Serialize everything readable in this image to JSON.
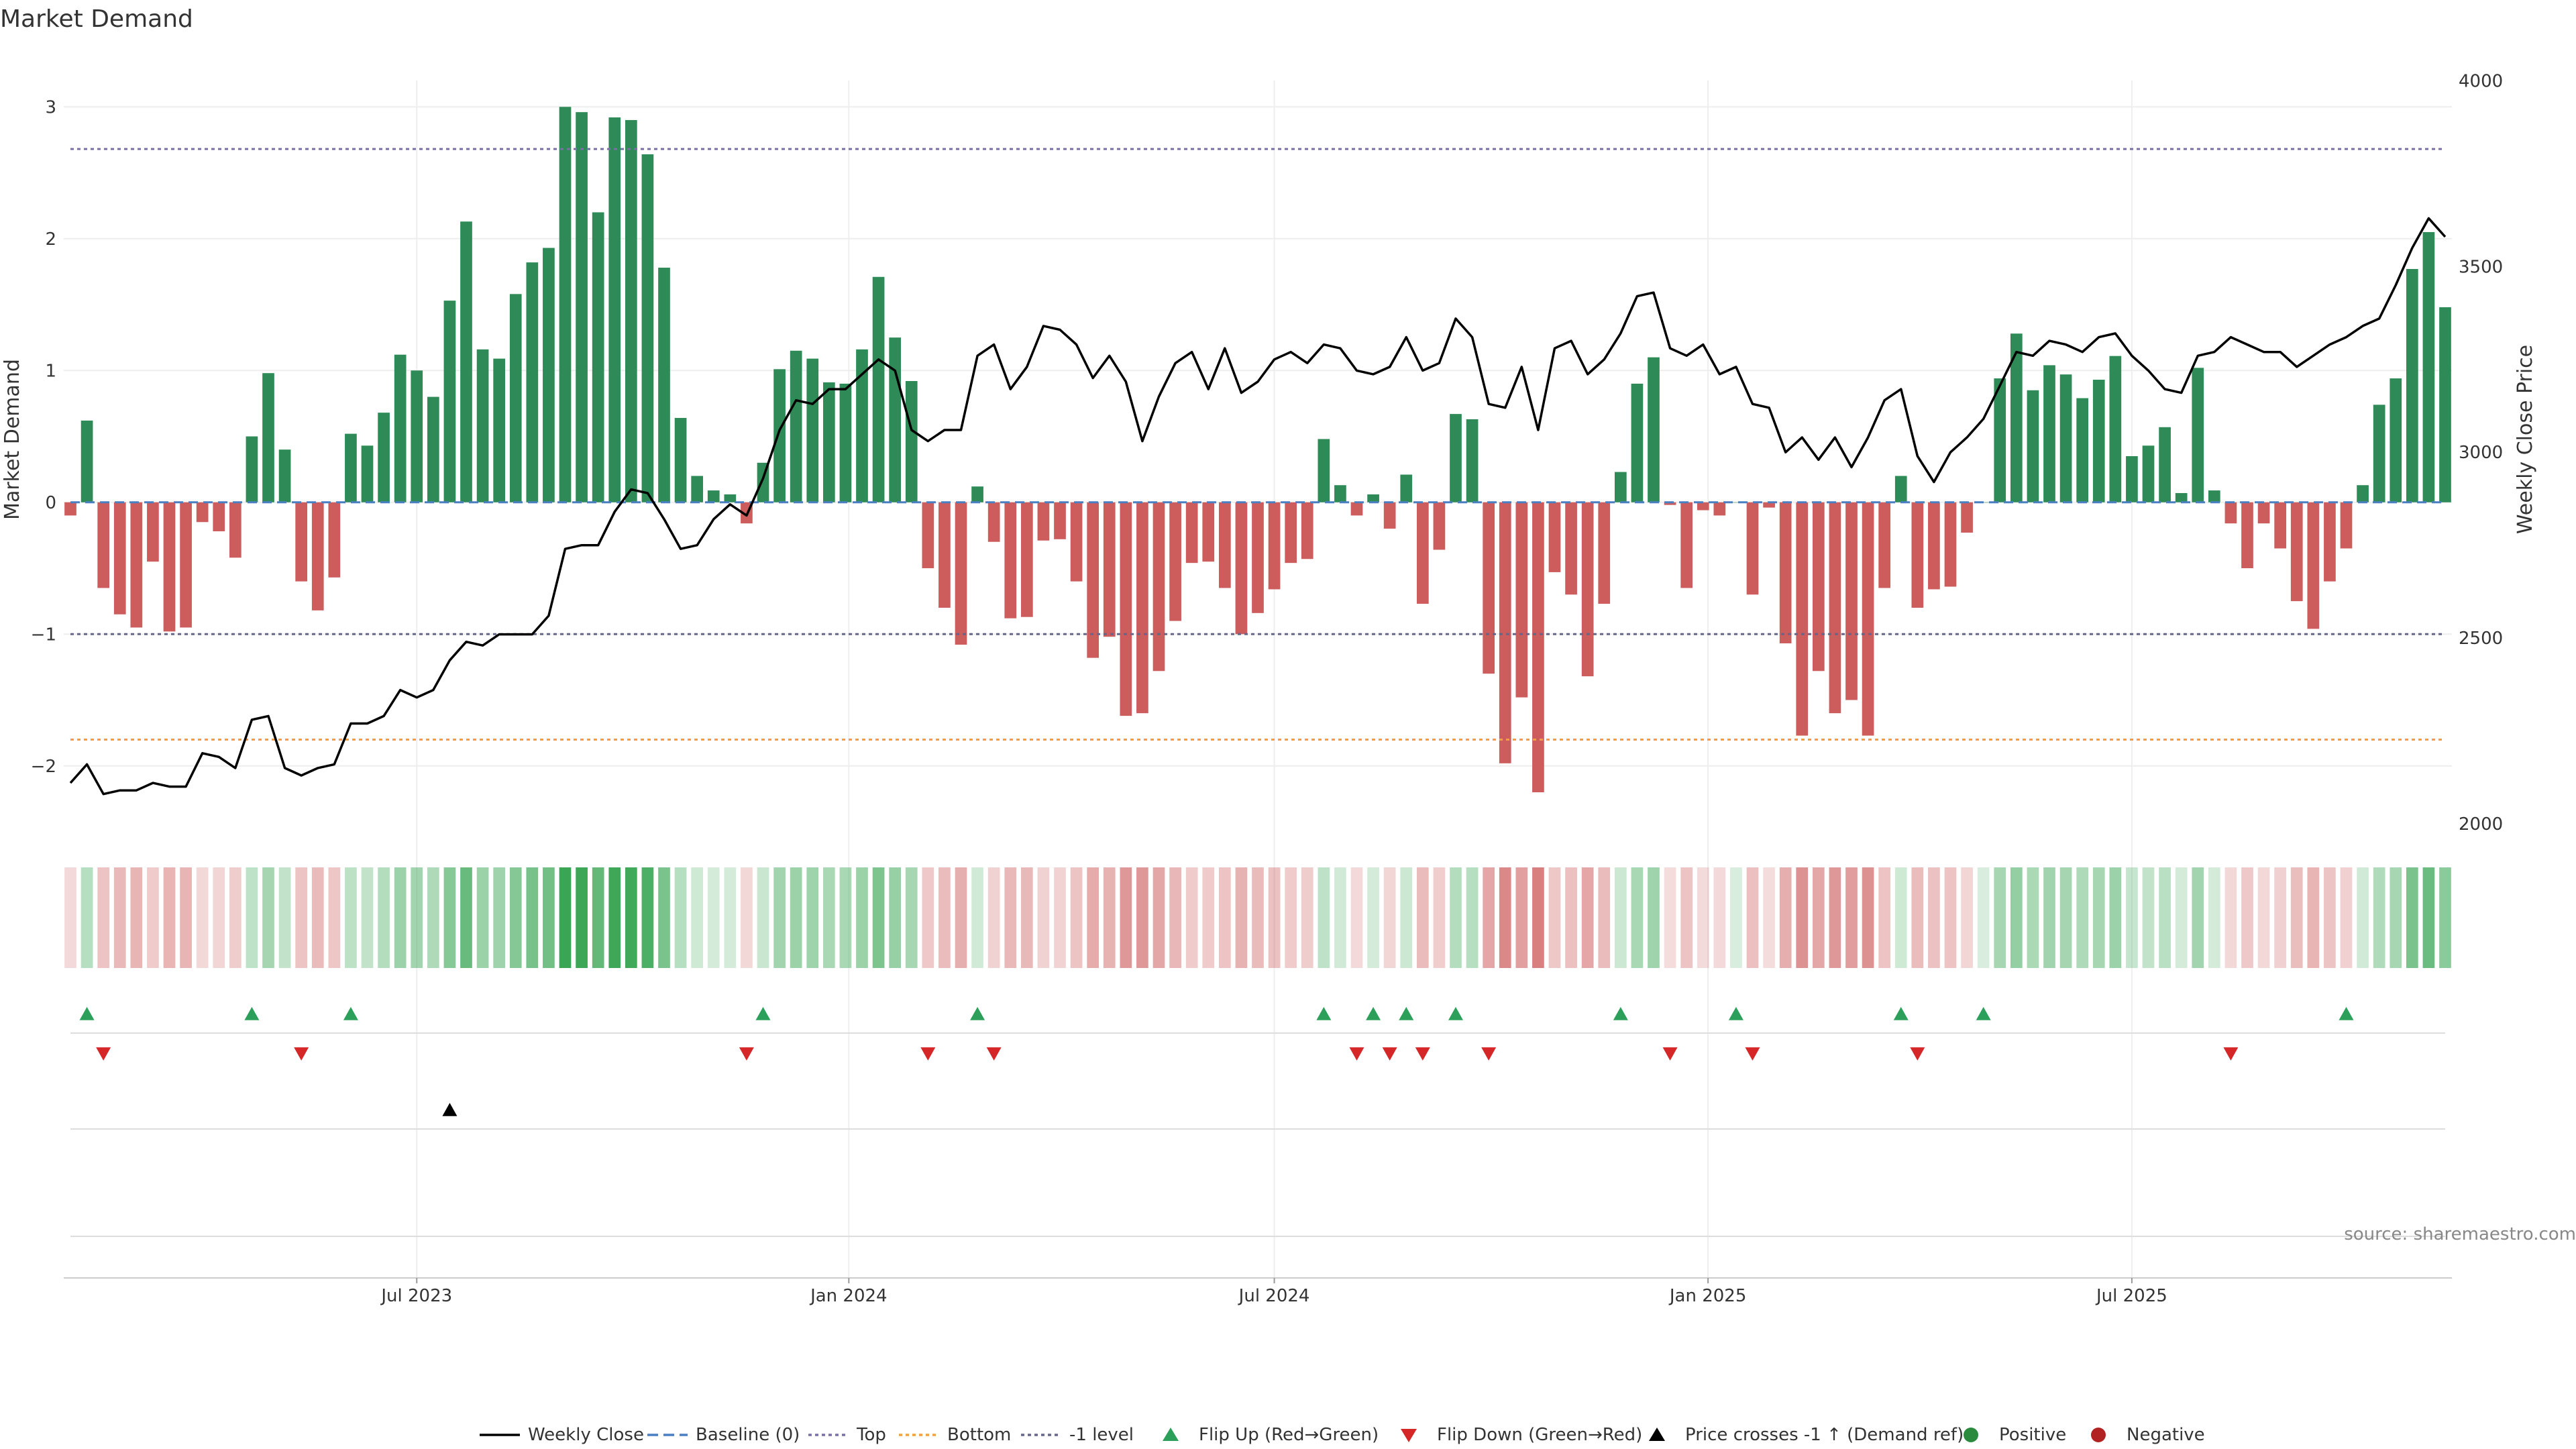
{
  "chart_data": {
    "type": "bar",
    "title": "Market Demand",
    "ylabel_left": "Market Demand",
    "ylabel_right": "Weekly Close Price",
    "ylim_left": [
      -2.5,
      3.2
    ],
    "ylim_right": [
      2000,
      4020
    ],
    "left_ticks": [
      {
        "label": "3",
        "value": 3
      },
      {
        "label": "2",
        "value": 2
      },
      {
        "label": "1",
        "value": 1
      },
      {
        "label": "0",
        "value": 0
      },
      {
        "label": "−1",
        "value": -1
      },
      {
        "label": "−2",
        "value": -2
      }
    ],
    "right_ticks": [
      {
        "label": "4000",
        "value": 4000
      },
      {
        "label": "3500",
        "value": 3500
      },
      {
        "label": "3000",
        "value": 3000
      },
      {
        "label": "2500",
        "value": 2500
      },
      {
        "label": "2000",
        "value": 2000
      }
    ],
    "x_ticks": [
      {
        "label": "Jul 2023",
        "index": 21
      },
      {
        "label": "Jan 2024",
        "index": 47.2
      },
      {
        "label": "Jul 2024",
        "index": 73
      },
      {
        "label": "Jan 2025",
        "index": 99.3
      },
      {
        "label": "Jul 2025",
        "index": 125
      }
    ],
    "reference_lines": [
      {
        "name": "Top",
        "value": 2.68,
        "color": "#7b6fa8"
      },
      {
        "name": "Bottom",
        "value": -1.8,
        "color": "#f0a040"
      },
      {
        "name": "-1 level",
        "value": -1,
        "color": "#666688"
      }
    ],
    "demand": [
      -0.1,
      0.62,
      -0.65,
      -0.85,
      -0.95,
      -0.45,
      -0.98,
      -0.95,
      -0.15,
      -0.22,
      -0.42,
      0.5,
      0.98,
      0.4,
      -0.6,
      -0.82,
      -0.57,
      0.52,
      0.43,
      0.68,
      1.12,
      1.0,
      0.8,
      1.53,
      2.13,
      1.16,
      1.09,
      1.58,
      1.82,
      1.93,
      3.0,
      2.96,
      2.2,
      2.92,
      2.9,
      2.64,
      1.78,
      0.64,
      0.2,
      0.09,
      0.06,
      -0.16,
      0.3,
      1.01,
      1.15,
      1.09,
      0.91,
      0.9,
      1.16,
      1.71,
      1.25,
      0.92,
      -0.5,
      -0.8,
      -1.08,
      0.12,
      -0.3,
      -0.88,
      -0.87,
      -0.29,
      -0.28,
      -0.6,
      -1.18,
      -1.02,
      -1.62,
      -1.6,
      -1.28,
      -0.9,
      -0.46,
      -0.45,
      -0.65,
      -1.0,
      -0.84,
      -0.66,
      -0.46,
      -0.43,
      0.48,
      0.13,
      -0.1,
      0.06,
      -0.2,
      0.21,
      -0.77,
      -0.36,
      0.67,
      0.63,
      -1.3,
      -1.98,
      -1.48,
      -2.2,
      -0.53,
      -0.7,
      -1.32,
      -0.77,
      0.23,
      0.9,
      1.1,
      -0.02,
      -0.65,
      -0.06,
      -0.1,
      0.0,
      -0.7,
      -0.04,
      -1.07,
      -1.77,
      -1.28,
      -1.6,
      -1.5,
      -1.77,
      -0.65,
      0.2,
      -0.8,
      -0.66,
      -0.64,
      -0.23,
      0.0,
      0.94,
      1.28,
      0.85,
      1.04,
      0.97,
      0.79,
      0.93,
      1.11,
      0.35,
      0.43,
      0.57,
      0.07,
      1.02,
      0.09,
      -0.16,
      -0.5,
      -0.16,
      -0.35,
      -0.75,
      -0.96,
      -0.6,
      -0.35,
      0.13,
      0.74,
      0.94,
      1.77,
      2.05,
      1.48
    ],
    "weekly_close": [
      2110,
      2160,
      2080,
      2090,
      2090,
      2110,
      2100,
      2100,
      2190,
      2180,
      2150,
      2280,
      2290,
      2150,
      2130,
      2150,
      2160,
      2270,
      2270,
      2290,
      2360,
      2340,
      2360,
      2440,
      2490,
      2480,
      2510,
      2510,
      2510,
      2560,
      2740,
      2750,
      2750,
      2840,
      2900,
      2890,
      2820,
      2740,
      2750,
      2820,
      2860,
      2830,
      2930,
      3060,
      3140,
      3130,
      3170,
      3170,
      3210,
      3250,
      3220,
      3060,
      3030,
      3060,
      3060,
      3260,
      3290,
      3170,
      3230,
      3340,
      3330,
      3290,
      3200,
      3260,
      3190,
      3030,
      3150,
      3240,
      3270,
      3170,
      3280,
      3160,
      3190,
      3250,
      3270,
      3240,
      3290,
      3280,
      3220,
      3210,
      3230,
      3310,
      3220,
      3240,
      3360,
      3310,
      3130,
      3120,
      3230,
      3060,
      3280,
      3300,
      3210,
      3250,
      3320,
      3420,
      3430,
      3280,
      3260,
      3290,
      3210,
      3230,
      3130,
      3120,
      3000,
      3040,
      2980,
      3040,
      2960,
      3040,
      3140,
      3170,
      2990,
      2920,
      3000,
      3040,
      3090,
      3180,
      3270,
      3260,
      3300,
      3290,
      3270,
      3310,
      3320,
      3260,
      3220,
      3170,
      3160,
      3260,
      3270,
      3310,
      3290,
      3270,
      3270,
      3230,
      3260,
      3290,
      3310,
      3340,
      3360,
      3450,
      3550,
      3630,
      3580
    ],
    "flip_up_indices": [
      1,
      11,
      17,
      42,
      55,
      76,
      79,
      81,
      84,
      94,
      101,
      111,
      116,
      138
    ],
    "flip_down_indices": [
      2,
      14,
      41,
      52,
      56,
      78,
      80,
      82,
      86,
      97,
      102,
      112,
      131
    ],
    "price_cross_indices": [
      23
    ],
    "legend": [
      {
        "label": "Weekly Close",
        "kind": "line",
        "color": "#000000"
      },
      {
        "label": "Baseline (0)",
        "kind": "dashed",
        "color": "#4a7fc1"
      },
      {
        "label": "Top",
        "kind": "dotted",
        "color": "#7b6fa8"
      },
      {
        "label": "Bottom",
        "kind": "dotted",
        "color": "#f0a040"
      },
      {
        "label": "-1 level",
        "kind": "dotted",
        "color": "#666688"
      },
      {
        "label": "Flip Up (Red→Green)",
        "kind": "tri-up",
        "color": "#2ca05a"
      },
      {
        "label": "Flip Down (Green→Red)",
        "kind": "tri-down",
        "color": "#d62728"
      },
      {
        "label": "Price crosses -1 ↑ (Demand ref)",
        "kind": "tri-up",
        "color": "#000000"
      },
      {
        "label": "Positive",
        "kind": "dot",
        "color": "#2a8a3e"
      },
      {
        "label": "Negative",
        "kind": "dot",
        "color": "#b22222"
      }
    ],
    "colors": {
      "positive": "#2e8b57",
      "negative": "#cd5c5c",
      "price": "#000000"
    }
  },
  "source_note": "source: sharemaestro.com"
}
